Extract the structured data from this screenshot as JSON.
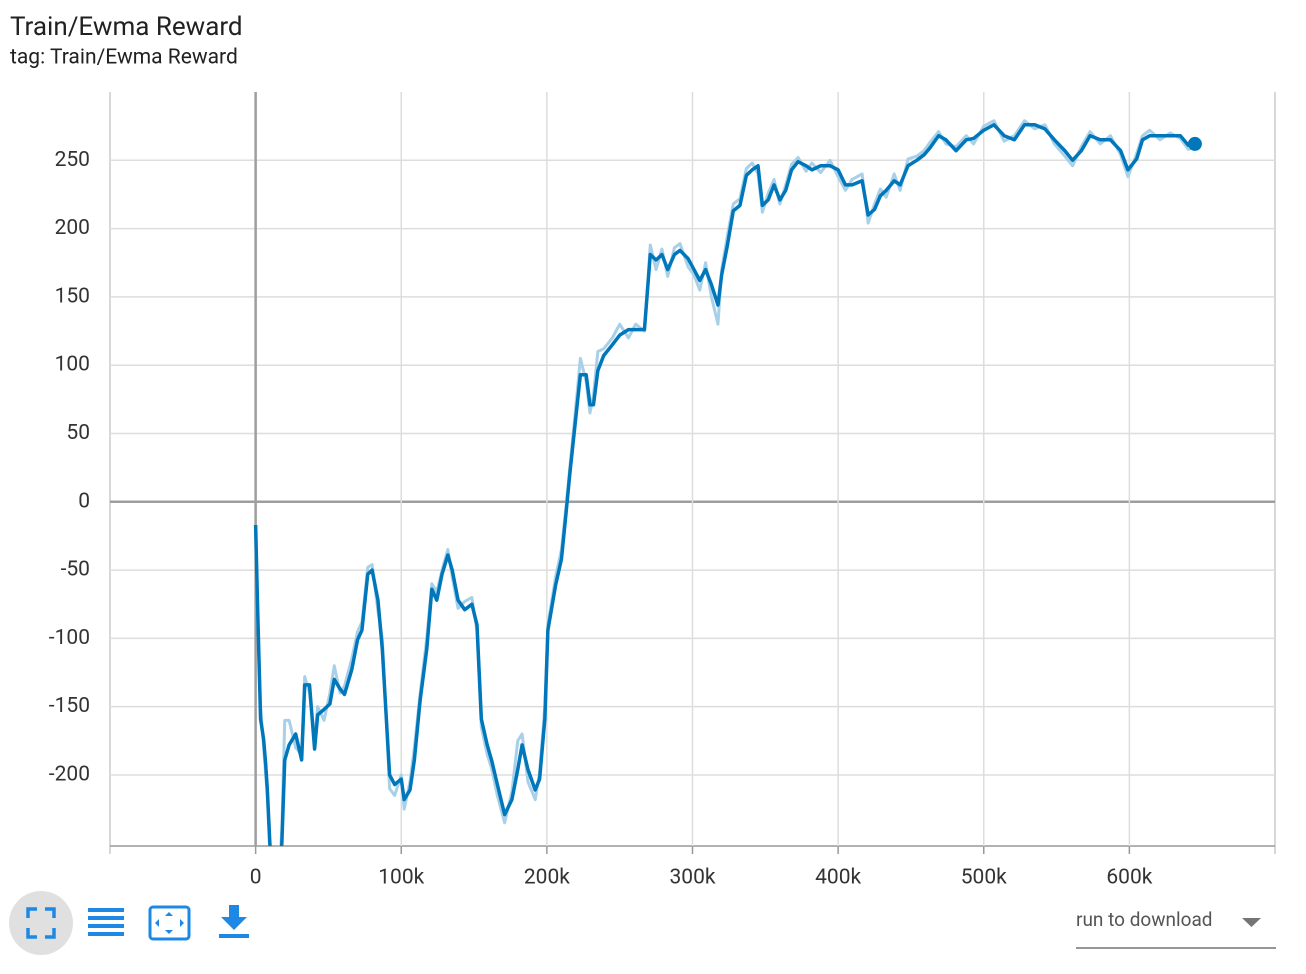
{
  "chart_data": {
    "type": "line",
    "title": "Train/Ewma Reward",
    "subtitle": "tag: Train/Ewma Reward",
    "x": [
      0,
      1400,
      3400,
      5500,
      6900,
      8000,
      12000,
      15000,
      18000,
      20000,
      23000,
      27500,
      31600,
      33700,
      37000,
      40500,
      42600,
      47000,
      51000,
      54000,
      58000,
      61000,
      66000,
      70000,
      73000,
      77000,
      80000,
      84000,
      87000,
      92000,
      95500,
      100000,
      102000,
      106000,
      109000,
      113000,
      117500,
      121000,
      124400,
      128000,
      132000,
      135000,
      139000,
      143600,
      148500,
      152000,
      155000,
      159000,
      162000,
      166000,
      171000,
      176000,
      180000,
      183000,
      187000,
      192000,
      195000,
      198600,
      200700,
      206000,
      210000,
      213000,
      216000,
      219000,
      223000,
      227000,
      229600,
      232000,
      235000,
      239000,
      245000,
      250000,
      256000,
      261000,
      267000,
      271000,
      275000,
      279000,
      283000,
      287600,
      291400,
      297000,
      301000,
      305000,
      309000,
      313000,
      317500,
      320000,
      324000,
      328000,
      332600,
      337000,
      341000,
      345000,
      348000,
      352000,
      356000,
      360000,
      364000,
      368000,
      372500,
      378000,
      382000,
      388000,
      394500,
      400000,
      405000,
      409600,
      416500,
      420600,
      425000,
      429000,
      433000,
      438500,
      442600,
      448000,
      454000,
      459000,
      463000,
      469000,
      474000,
      481000,
      488000,
      493000,
      500000,
      507000,
      514000,
      521000,
      528000,
      535000,
      542000,
      548500,
      555700,
      561000,
      567000,
      573000,
      580000,
      587000,
      594000,
      599000,
      605000,
      609000,
      614000,
      621000,
      628000,
      635000,
      640500,
      645000
    ],
    "series": [
      {
        "color": "#a8d0e8",
        "values": [
          -20,
          -90,
          -150,
          -180,
          -200,
          -215,
          -310,
          -290,
          -240,
          -160,
          -160,
          -180,
          -185,
          -128,
          -140,
          -175,
          -150,
          -160,
          -140,
          -120,
          -140,
          -135,
          -115,
          -95,
          -88,
          -48,
          -46,
          -80,
          -100,
          -210,
          -215,
          -200,
          -225,
          -205,
          -180,
          -140,
          -100,
          -60,
          -66,
          -50,
          -35,
          -55,
          -78,
          -73,
          -70,
          -95,
          -165,
          -185,
          -195,
          -215,
          -235,
          -212,
          -175,
          -170,
          -205,
          -218,
          -198,
          -150,
          -90,
          -55,
          -35,
          -5,
          28,
          60,
          105,
          88,
          65,
          78,
          110,
          112,
          120,
          130,
          120,
          130,
          125,
          188,
          170,
          185,
          165,
          186,
          189,
          172,
          166,
          155,
          175,
          150,
          130,
          170,
          195,
          218,
          222,
          244,
          248,
          240,
          212,
          226,
          236,
          218,
          232,
          247,
          252,
          242,
          248,
          241,
          250,
          238,
          228,
          236,
          240,
          204,
          218,
          229,
          223,
          240,
          228,
          251,
          253,
          257,
          263,
          271,
          262,
          260,
          268,
          262,
          275,
          279,
          264,
          268,
          279,
          273,
          276,
          262,
          253,
          246,
          260,
          271,
          262,
          268,
          254,
          238,
          255,
          268,
          272,
          265,
          270,
          266,
          258,
          260
        ]
      },
      {
        "color": "#0077bb",
        "values": [
          -17,
          -79,
          -159,
          -174,
          -192,
          -210,
          -300,
          -280,
          -250,
          -189,
          -178,
          -170,
          -189,
          -134,
          -134,
          -181,
          -156,
          -152,
          -148,
          -130,
          -137,
          -141,
          -123,
          -101,
          -94,
          -53,
          -50,
          -72,
          -108,
          -200,
          -207,
          -203,
          -218,
          -211,
          -189,
          -145,
          -108,
          -64,
          -72,
          -53,
          -39,
          -50,
          -72,
          -79,
          -75,
          -90,
          -159,
          -178,
          -189,
          -207,
          -229,
          -218,
          -196,
          -178,
          -196,
          -211,
          -203,
          -159,
          -94,
          -61,
          -42,
          -10,
          23,
          53,
          93,
          93,
          71,
          71,
          96,
          107,
          115,
          122,
          126,
          126,
          126,
          181,
          177,
          181,
          170,
          181,
          184,
          178,
          170,
          162,
          170,
          159,
          144,
          166,
          188,
          213,
          217,
          239,
          243,
          246,
          217,
          221,
          232,
          221,
          228,
          243,
          249,
          246,
          243,
          246,
          246,
          243,
          232,
          232,
          235,
          210,
          214,
          224,
          228,
          235,
          232,
          246,
          250,
          254,
          259,
          268,
          265,
          257,
          265,
          266,
          272,
          276,
          268,
          265,
          276,
          276,
          273,
          265,
          257,
          250,
          257,
          268,
          265,
          265,
          257,
          243,
          251,
          265,
          268,
          268,
          268,
          268,
          261,
          262
        ]
      }
    ],
    "xlim": [
      -100000,
      700000
    ],
    "xticks": [
      0,
      {
        "value": 100000,
        "label": "100k"
      },
      {
        "value": 200000,
        "label": "200k"
      },
      {
        "value": 300000,
        "label": "300k"
      },
      {
        "value": 400000,
        "label": "400k"
      },
      {
        "value": 500000,
        "label": "500k"
      },
      {
        "value": 600000,
        "label": "600k"
      }
    ],
    "ylim": [
      -252,
      300
    ],
    "yticks": [
      -200,
      -150,
      -100,
      -50,
      0,
      50,
      100,
      150,
      200,
      250
    ],
    "grid": true
  },
  "controls": {
    "run_select": "run to download"
  }
}
